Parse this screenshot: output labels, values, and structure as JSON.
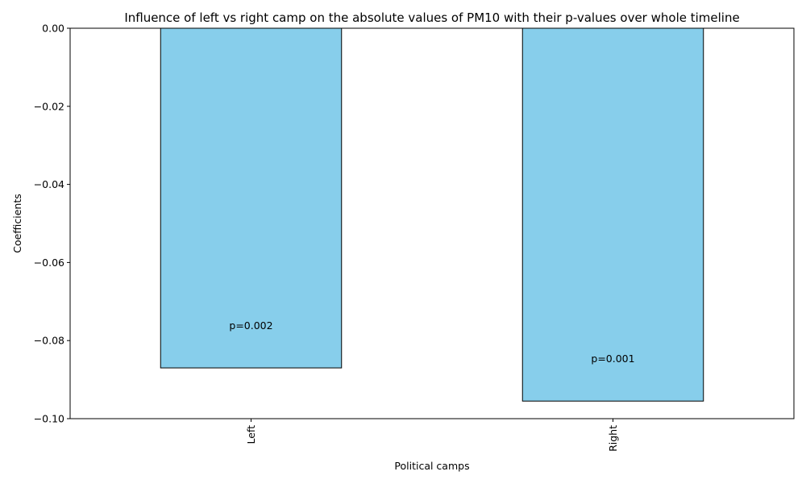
{
  "chart_data": {
    "type": "bar",
    "title": "Influence of left vs right camp on the absolute values of PM10 with their p-values over whole timeline",
    "xlabel": "Political camps",
    "ylabel": "Coefficients",
    "categories": [
      "Left",
      "Right"
    ],
    "values": [
      -0.087,
      -0.0955
    ],
    "annotations": [
      "p=0.002",
      "p=0.001"
    ],
    "ylim": [
      -0.1,
      0.0
    ],
    "yticks": [
      0.0,
      -0.02,
      -0.04,
      -0.06,
      -0.08,
      -0.1
    ],
    "ytick_labels": [
      "0.00",
      "−0.02",
      "−0.04",
      "−0.06",
      "−0.08",
      "−0.10"
    ],
    "grid": false,
    "legend": "none",
    "colors": {
      "bar_fill": "#87ceeb",
      "bar_edge": "#000000"
    }
  }
}
